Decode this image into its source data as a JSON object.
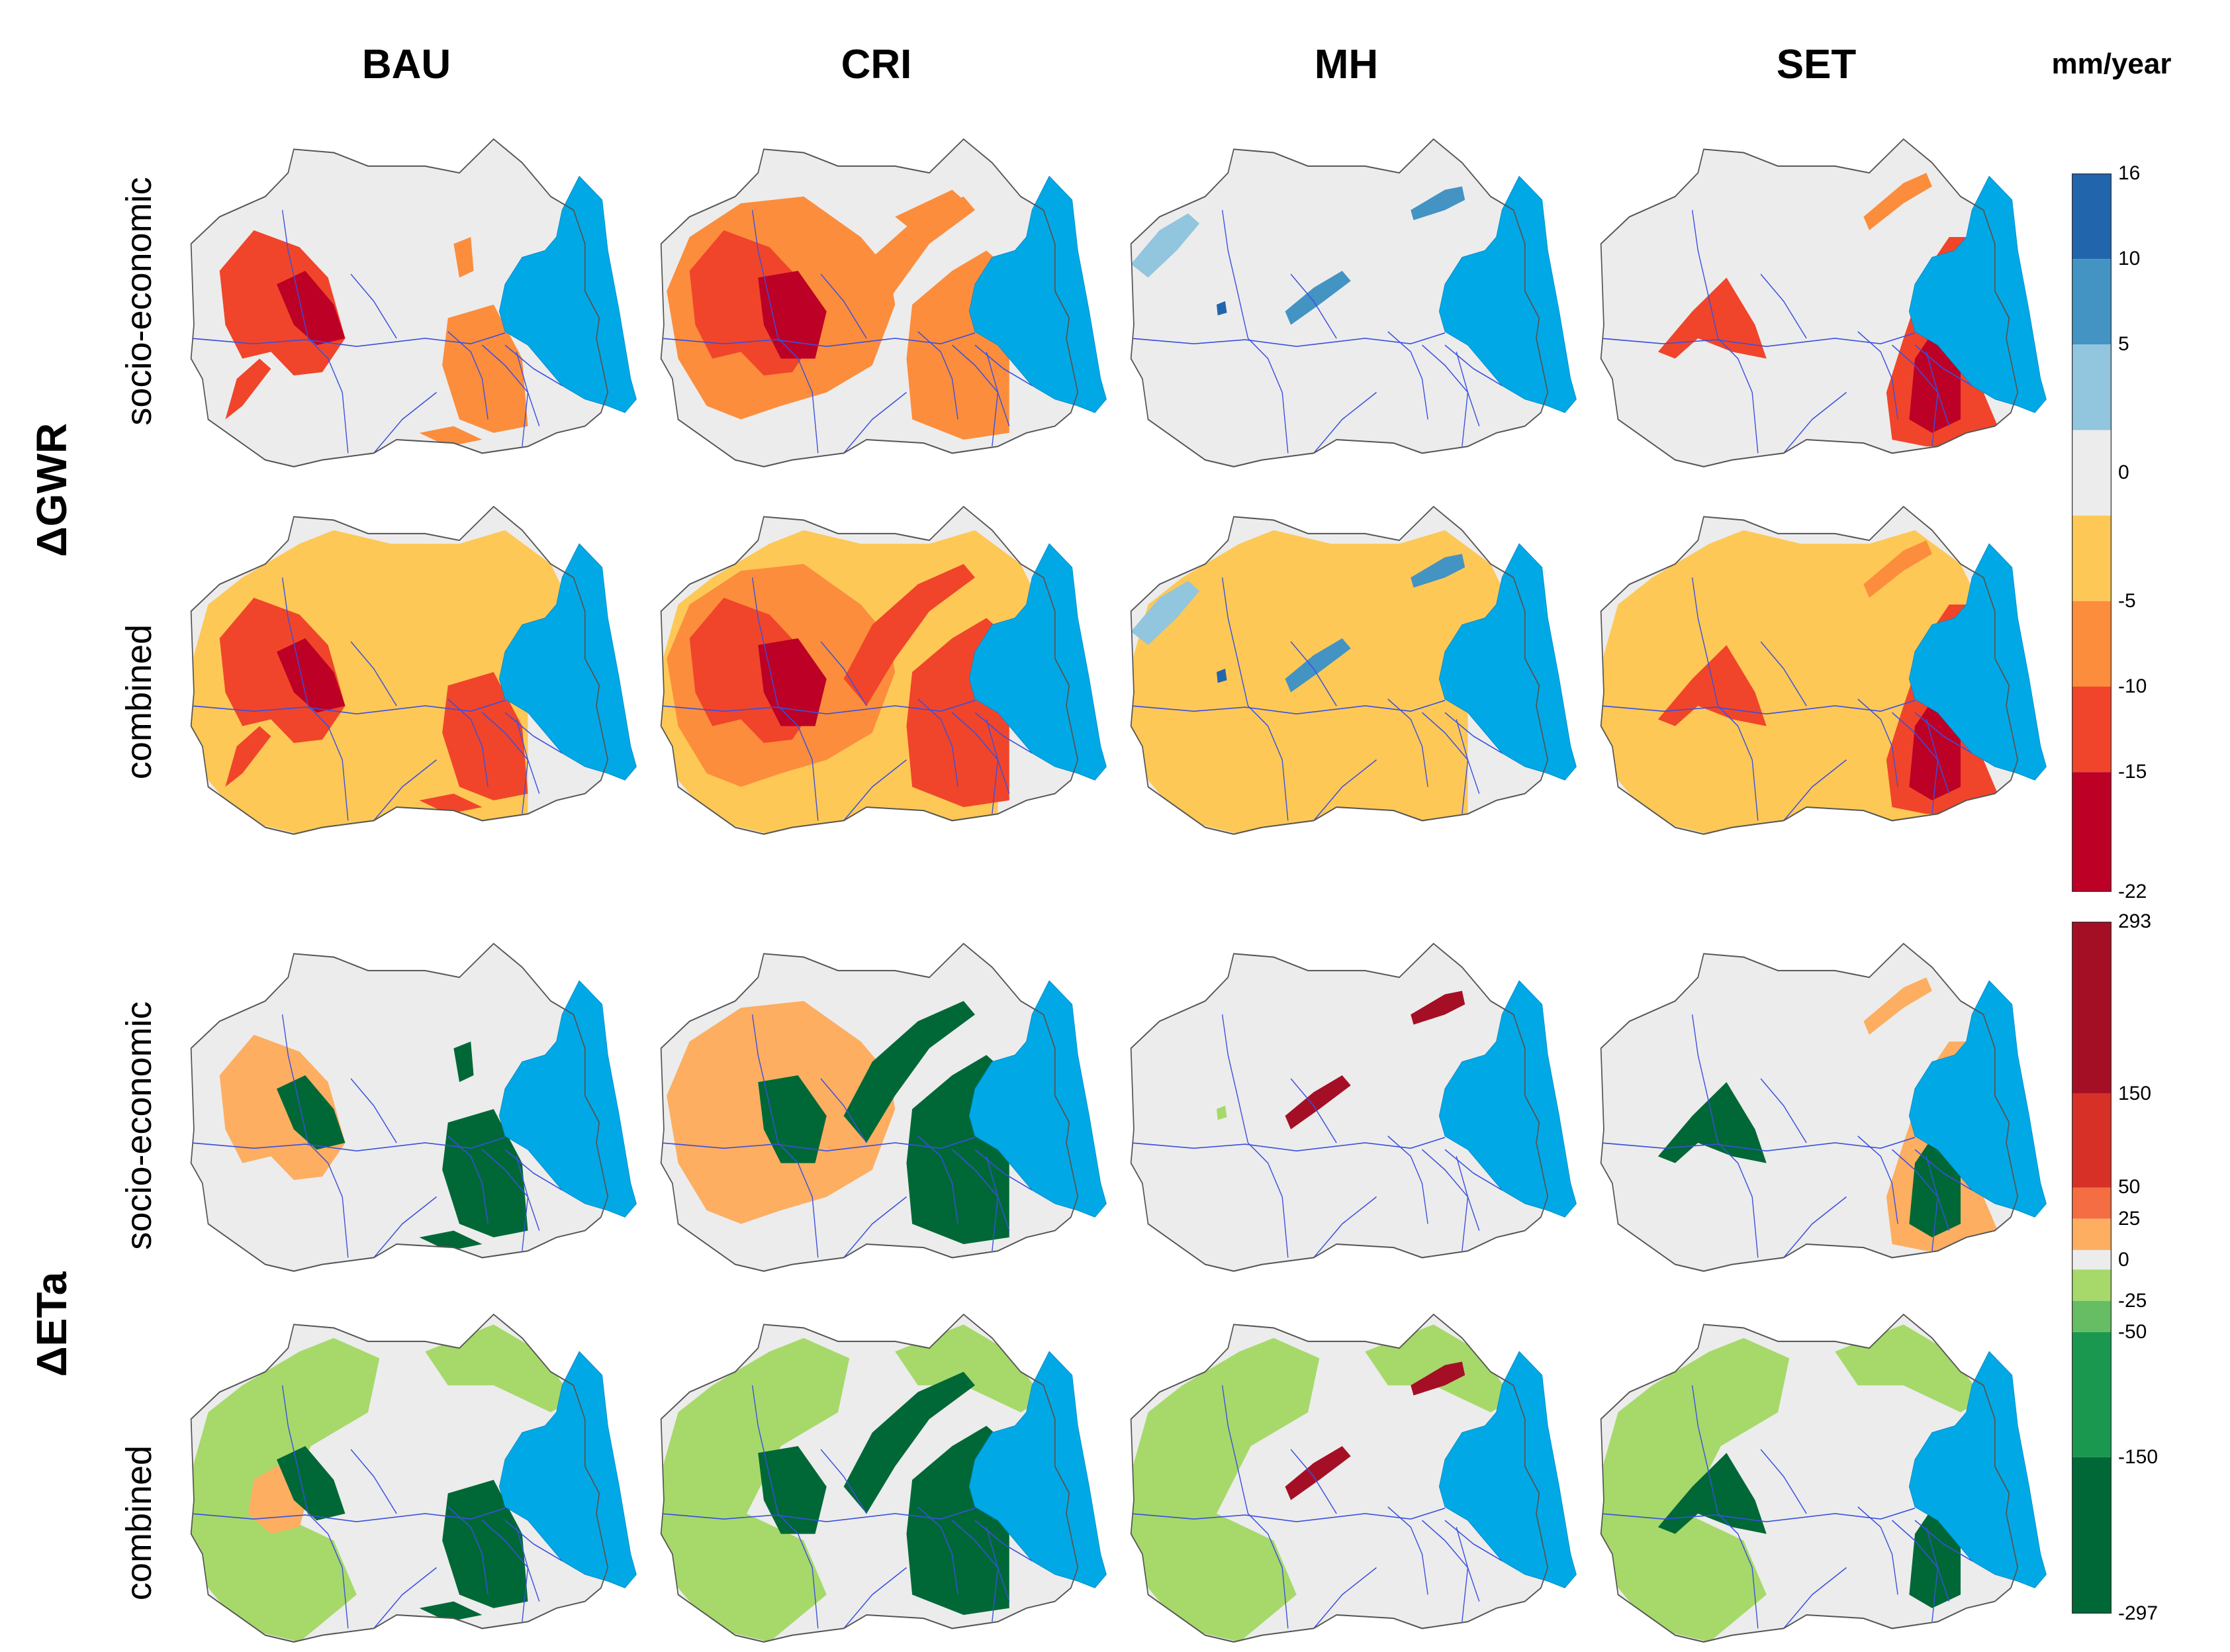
{
  "figure": {
    "unit": "mm/year",
    "columns": [
      "BAU",
      "CRI",
      "MH",
      "SET"
    ],
    "groups": [
      {
        "label": "ΔGWR",
        "rows": [
          "socio-economic",
          "combined"
        ],
        "legend": {
          "ticks": [
            "16",
            "10",
            "5",
            "0",
            "-5",
            "-10",
            "-15",
            "-22"
          ],
          "breaks": [
            16,
            10,
            5,
            2,
            -2,
            -5,
            -10,
            -15,
            -22
          ],
          "colors": [
            "#2166ac",
            "#4393c3",
            "#92c5de",
            "#ececec",
            "#fdc856",
            "#fc8d3c",
            "#f0452a",
            "#bd0026"
          ]
        }
      },
      {
        "label": "ΔETa",
        "rows": [
          "socio-economic",
          "combined"
        ],
        "legend": {
          "ticks": [
            "293",
            "150",
            "50",
            "25",
            "0",
            "-25",
            "-50",
            "-150",
            "-297"
          ],
          "breaks": [
            293,
            150,
            50,
            25,
            5,
            -5,
            -25,
            -50,
            -150,
            -297
          ],
          "colors": [
            "#a50f26",
            "#d73027",
            "#f46d43",
            "#fdae61",
            "#ececec",
            "#a6d96a",
            "#66bd63",
            "#1a9850",
            "#006837"
          ]
        }
      }
    ],
    "colors": {
      "basin_fill": "#ececec",
      "basin_outline": "#555555",
      "lake": "#00a9e6",
      "rivers": "#3a4fe0"
    }
  }
}
